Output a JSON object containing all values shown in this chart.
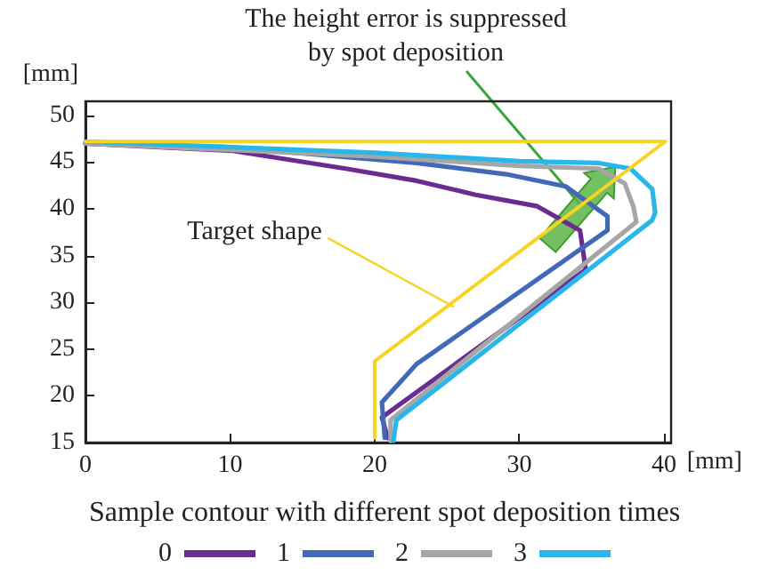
{
  "chart_data": {
    "type": "line",
    "xlabel": "[mm]",
    "ylabel": "[mm]",
    "legend_title": "Sample contour with different spot deposition times",
    "legend": "bottom",
    "grid": false,
    "marker": "none",
    "line_style": "solid",
    "xlim": [
      0,
      40.5
    ],
    "ylim": [
      15,
      51.5
    ],
    "xticks": [
      0,
      10,
      20,
      30,
      40
    ],
    "yticks": [
      15,
      20,
      25,
      30,
      35,
      40,
      45,
      50
    ],
    "annotations": [
      {
        "text": "The height error is suppressed by spot deposition",
        "x": 34.3,
        "y": 40.3
      },
      {
        "text": "Target shape",
        "x": 25.5,
        "y": 29.5
      }
    ],
    "series": [
      {
        "name": "0",
        "color": "#6a2c91",
        "x": [
          0,
          10.2,
          18,
          22.9,
          27,
          31.2,
          34.2,
          34.6,
          20.5,
          20.9
        ],
        "values": [
          47,
          46.2,
          44.3,
          43,
          41.5,
          40.3,
          37.7,
          33.5,
          17.7,
          15.5
        ]
      },
      {
        "name": "1",
        "color": "#4169b8",
        "x": [
          0,
          10,
          22.9,
          29.1,
          33.2,
          36.1,
          36.1,
          22.9,
          20.5,
          20.7
        ],
        "values": [
          47,
          46.6,
          44.9,
          43.7,
          42.4,
          39.2,
          37.7,
          23.4,
          19.3,
          15.5
        ]
      },
      {
        "name": "2",
        "color": "#a6a6a6",
        "x": [
          0,
          20,
          30,
          35.5,
          37.3,
          37.9,
          38.1,
          21.1,
          21.1
        ],
        "values": [
          47,
          45.6,
          44.6,
          44.3,
          42.7,
          40.2,
          38.6,
          17.4,
          15.2
        ]
      },
      {
        "name": "3",
        "color": "#29b6e8",
        "x": [
          0,
          20,
          30,
          35.5,
          37.7,
          39.2,
          39.4,
          39.2,
          21.5,
          21.3
        ],
        "values": [
          47.2,
          46,
          45.1,
          44.9,
          44.3,
          42.1,
          39.6,
          38.8,
          17.4,
          15.2
        ]
      },
      {
        "color": "#f5d423",
        "x": [
          0,
          40.1,
          20,
          20
        ],
        "values": [
          47.2,
          47.2,
          23.7,
          15.5
        ]
      }
    ]
  }
}
